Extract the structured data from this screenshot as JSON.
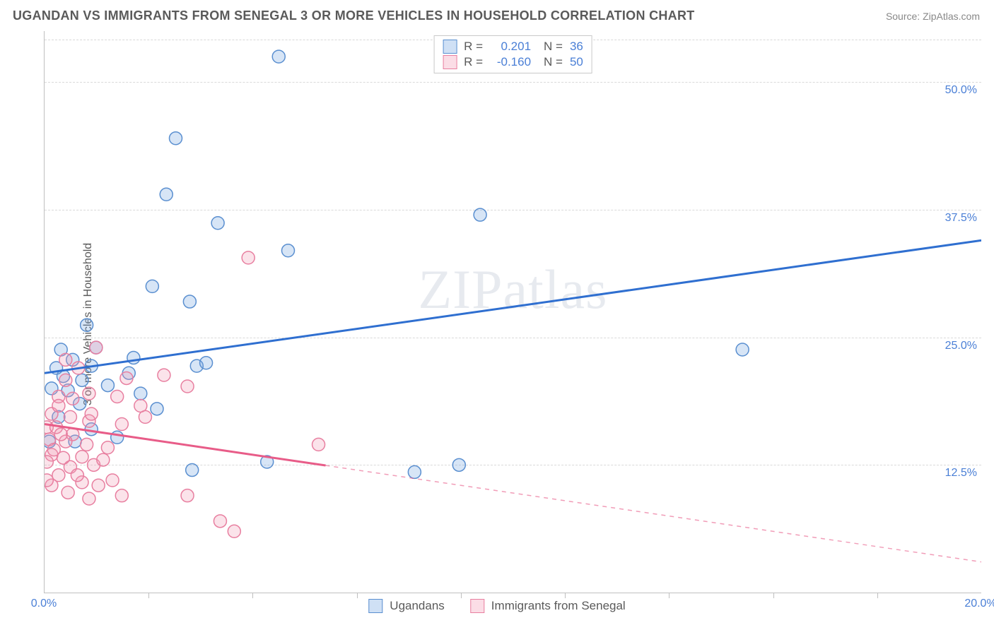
{
  "header": {
    "title": "UGANDAN VS IMMIGRANTS FROM SENEGAL 3 OR MORE VEHICLES IN HOUSEHOLD CORRELATION CHART",
    "source": "Source: ZipAtlas.com"
  },
  "chart": {
    "type": "scatter",
    "ylabel": "3 or more Vehicles in Household",
    "watermark": "ZIPatlas",
    "background_color": "#ffffff",
    "grid_color": "#d9d9d9",
    "axis_color": "#bfbfbf",
    "tick_label_color": "#4a7fd6",
    "xlim": [
      0,
      20
    ],
    "ylim": [
      0,
      55
    ],
    "yticks": [
      {
        "v": 12.5,
        "label": "12.5%"
      },
      {
        "v": 25.0,
        "label": "25.0%"
      },
      {
        "v": 37.5,
        "label": "37.5%"
      },
      {
        "v": 50.0,
        "label": "50.0%"
      }
    ],
    "xticks_major": [
      0,
      20
    ],
    "xticks_minor": [
      2.22,
      4.44,
      6.67,
      8.89,
      11.11,
      13.33,
      15.56,
      17.78
    ],
    "xtick_labels": [
      {
        "v": 0,
        "label": "0.0%"
      },
      {
        "v": 20,
        "label": "20.0%"
      }
    ],
    "marker_radius": 9,
    "marker_stroke_width": 1.5,
    "marker_fill_opacity": 0.28,
    "line_width": 3,
    "series": [
      {
        "name": "Ugandans",
        "color": "#6fa3e0",
        "stroke": "#5a8fd0",
        "line_color": "#2f6fd0",
        "r": "0.201",
        "n": "36",
        "trend": {
          "x1": 0,
          "y1": 21.5,
          "x2": 20,
          "y2": 34.5,
          "dashed_from_x": null
        },
        "points": [
          [
            5.0,
            52.5
          ],
          [
            2.8,
            44.5
          ],
          [
            2.6,
            39.0
          ],
          [
            3.7,
            36.2
          ],
          [
            5.2,
            33.5
          ],
          [
            9.3,
            37.0
          ],
          [
            2.3,
            30.0
          ],
          [
            3.1,
            28.5
          ],
          [
            0.9,
            26.2
          ],
          [
            1.1,
            24.0
          ],
          [
            0.35,
            23.8
          ],
          [
            0.6,
            22.8
          ],
          [
            0.4,
            21.2
          ],
          [
            1.35,
            20.3
          ],
          [
            2.05,
            19.5
          ],
          [
            3.25,
            22.2
          ],
          [
            2.4,
            18.0
          ],
          [
            1.8,
            21.5
          ],
          [
            0.75,
            18.5
          ],
          [
            0.3,
            17.2
          ],
          [
            1.55,
            15.2
          ],
          [
            4.75,
            12.8
          ],
          [
            3.15,
            12.0
          ],
          [
            7.9,
            11.8
          ],
          [
            0.1,
            14.8
          ],
          [
            0.65,
            14.8
          ],
          [
            14.9,
            23.8
          ],
          [
            1.0,
            16.0
          ],
          [
            8.85,
            12.5
          ],
          [
            0.5,
            19.8
          ],
          [
            0.25,
            22.0
          ],
          [
            1.9,
            23.0
          ],
          [
            3.45,
            22.5
          ],
          [
            1.0,
            22.2
          ],
          [
            0.15,
            20.0
          ],
          [
            0.8,
            20.8
          ]
        ]
      },
      {
        "name": "Immigrants from Senegal",
        "color": "#f29ab5",
        "stroke": "#e87fa0",
        "line_color": "#e85c88",
        "r": "-0.160",
        "n": "50",
        "trend": {
          "x1": 0,
          "y1": 16.5,
          "x2": 20,
          "y2": 3.0,
          "dashed_from_x": 6.0
        },
        "points": [
          [
            4.35,
            32.8
          ],
          [
            1.1,
            24.0
          ],
          [
            0.45,
            22.8
          ],
          [
            0.72,
            22.0
          ],
          [
            0.45,
            20.8
          ],
          [
            1.75,
            21.0
          ],
          [
            2.55,
            21.3
          ],
          [
            3.05,
            20.2
          ],
          [
            0.3,
            19.2
          ],
          [
            0.95,
            19.5
          ],
          [
            1.55,
            19.2
          ],
          [
            0.15,
            17.5
          ],
          [
            0.55,
            17.2
          ],
          [
            0.95,
            16.8
          ],
          [
            1.65,
            16.5
          ],
          [
            2.15,
            17.2
          ],
          [
            0.05,
            16.2
          ],
          [
            0.25,
            16.2
          ],
          [
            0.6,
            15.5
          ],
          [
            0.45,
            14.8
          ],
          [
            0.9,
            14.5
          ],
          [
            1.35,
            14.2
          ],
          [
            5.85,
            14.5
          ],
          [
            0.15,
            13.5
          ],
          [
            0.05,
            12.8
          ],
          [
            0.55,
            12.3
          ],
          [
            1.05,
            12.5
          ],
          [
            0.3,
            11.5
          ],
          [
            0.8,
            10.8
          ],
          [
            1.15,
            10.5
          ],
          [
            0.5,
            9.8
          ],
          [
            0.95,
            9.2
          ],
          [
            1.65,
            9.5
          ],
          [
            3.05,
            9.5
          ],
          [
            0.15,
            10.5
          ],
          [
            3.75,
            7.0
          ],
          [
            4.05,
            6.0
          ],
          [
            0.1,
            15.0
          ],
          [
            0.35,
            15.5
          ],
          [
            0.2,
            14.0
          ],
          [
            0.8,
            13.3
          ],
          [
            1.25,
            13.0
          ],
          [
            2.05,
            18.3
          ],
          [
            0.7,
            11.5
          ],
          [
            1.45,
            11.0
          ],
          [
            0.05,
            11.0
          ],
          [
            0.3,
            18.3
          ],
          [
            0.6,
            19.0
          ],
          [
            1.0,
            17.5
          ],
          [
            0.4,
            13.2
          ]
        ]
      }
    ],
    "legend_top": {
      "border_color": "#c9c9c9"
    },
    "legend_bottom_labels": [
      "Ugandans",
      "Immigrants from Senegal"
    ]
  }
}
